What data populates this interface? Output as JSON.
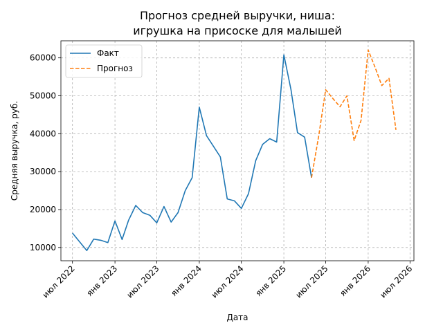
{
  "chart_data": {
    "type": "line",
    "title": [
      "Прогноз средней выручки, ниша:",
      "игрушка на присоске для малышей"
    ],
    "xlabel": "Дата",
    "ylabel": "Средняя выручка, руб.",
    "xlim": [
      "2022-05-12",
      "2026-07-18"
    ],
    "ylim": [
      6500,
      64500
    ],
    "grid": true,
    "legend_position": "top-left",
    "x_ticks": [
      {
        "date": "2022-07-01",
        "label": "июл 2022"
      },
      {
        "date": "2023-01-01",
        "label": "янв 2023"
      },
      {
        "date": "2023-07-01",
        "label": "июл 2023"
      },
      {
        "date": "2024-01-01",
        "label": "янв 2024"
      },
      {
        "date": "2024-07-01",
        "label": "июл 2024"
      },
      {
        "date": "2025-01-01",
        "label": "янв 2025"
      },
      {
        "date": "2025-07-01",
        "label": "июл 2025"
      },
      {
        "date": "2026-01-01",
        "label": "янв 2026"
      },
      {
        "date": "2026-07-01",
        "label": "июл 2026"
      }
    ],
    "y_ticks": [
      {
        "value": 10000,
        "label": "10000"
      },
      {
        "value": 20000,
        "label": "20000"
      },
      {
        "value": 30000,
        "label": "30000"
      },
      {
        "value": 40000,
        "label": "40000"
      },
      {
        "value": 50000,
        "label": "50000"
      },
      {
        "value": 60000,
        "label": "60000"
      }
    ],
    "series": [
      {
        "name": "Факт",
        "color": "#1f77b4",
        "style": "solid",
        "points": [
          [
            "2022-07-01",
            13800
          ],
          [
            "2022-08-01",
            11500
          ],
          [
            "2022-09-01",
            9200
          ],
          [
            "2022-10-01",
            12200
          ],
          [
            "2022-11-01",
            11900
          ],
          [
            "2022-12-01",
            11300
          ],
          [
            "2023-01-01",
            17000
          ],
          [
            "2023-02-01",
            12100
          ],
          [
            "2023-03-01",
            17200
          ],
          [
            "2023-04-01",
            21100
          ],
          [
            "2023-05-01",
            19200
          ],
          [
            "2023-06-01",
            18500
          ],
          [
            "2023-07-01",
            16500
          ],
          [
            "2023-08-01",
            20800
          ],
          [
            "2023-09-01",
            16700
          ],
          [
            "2023-10-01",
            19200
          ],
          [
            "2023-11-01",
            25000
          ],
          [
            "2023-12-01",
            28400
          ],
          [
            "2024-01-01",
            47000
          ],
          [
            "2024-02-01",
            39500
          ],
          [
            "2024-03-01",
            36800
          ],
          [
            "2024-04-01",
            33900
          ],
          [
            "2024-05-01",
            22800
          ],
          [
            "2024-06-01",
            22300
          ],
          [
            "2024-07-01",
            20300
          ],
          [
            "2024-08-01",
            24200
          ],
          [
            "2024-09-01",
            32900
          ],
          [
            "2024-10-01",
            37200
          ],
          [
            "2024-11-01",
            38700
          ],
          [
            "2024-12-01",
            37800
          ],
          [
            "2025-01-01",
            60800
          ],
          [
            "2025-02-01",
            51600
          ],
          [
            "2025-03-01",
            40300
          ],
          [
            "2025-04-01",
            39100
          ],
          [
            "2025-05-01",
            28400
          ]
        ]
      },
      {
        "name": "Прогноз",
        "color": "#ff7f0e",
        "style": "dashed",
        "points": [
          [
            "2025-05-01",
            28400
          ],
          [
            "2025-06-01",
            39500
          ],
          [
            "2025-07-01",
            51600
          ],
          [
            "2025-08-01",
            49300
          ],
          [
            "2025-09-01",
            47100
          ],
          [
            "2025-10-01",
            50000
          ],
          [
            "2025-11-01",
            38200
          ],
          [
            "2025-12-01",
            43500
          ],
          [
            "2026-01-01",
            62100
          ],
          [
            "2026-02-01",
            57300
          ],
          [
            "2026-03-01",
            52700
          ],
          [
            "2026-04-01",
            54600
          ],
          [
            "2026-05-01",
            41000
          ]
        ]
      }
    ]
  }
}
